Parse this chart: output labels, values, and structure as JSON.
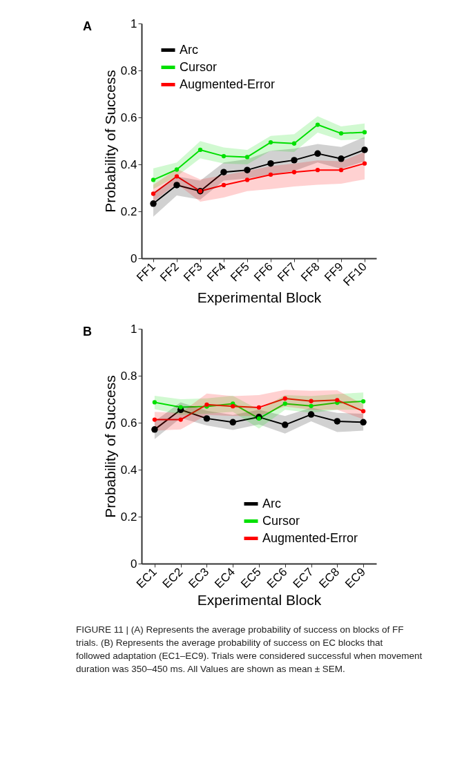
{
  "chart_data": [
    {
      "type": "line",
      "xlabel": "Experimental Block",
      "ylabel": "Probability of Success",
      "annotations": [
        "A"
      ],
      "categories": [
        "FF1",
        "FF2",
        "FF3",
        "FF4",
        "FF5",
        "FF6",
        "FF7",
        "FF8",
        "FF9",
        "FF10"
      ],
      "ylim": [
        0,
        1
      ],
      "yticks": [
        0,
        0.2,
        0.4,
        0.6,
        0.8,
        1
      ],
      "grid": false,
      "legend": "top left",
      "marker": "circle",
      "line_style": "solid",
      "series": [
        {
          "name": "Arc",
          "color": "#000000",
          "values": [
            0.233,
            0.312,
            0.286,
            0.367,
            0.376,
            0.404,
            0.418,
            0.446,
            0.424,
            0.462
          ],
          "lower": [
            0.177,
            0.268,
            0.25,
            0.331,
            0.34,
            0.358,
            0.372,
            0.408,
            0.381,
            0.413
          ],
          "upper": [
            0.281,
            0.349,
            0.331,
            0.408,
            0.422,
            0.458,
            0.467,
            0.487,
            0.474,
            0.517
          ]
        },
        {
          "name": "Cursor",
          "color": "#00e000",
          "values": [
            0.334,
            0.378,
            0.462,
            0.435,
            0.431,
            0.494,
            0.489,
            0.569,
            0.532,
            0.537
          ],
          "lower": [
            0.295,
            0.349,
            0.426,
            0.404,
            0.4,
            0.458,
            0.453,
            0.535,
            0.503,
            0.508
          ],
          "upper": [
            0.383,
            0.408,
            0.499,
            0.472,
            0.462,
            0.521,
            0.529,
            0.605,
            0.562,
            0.574
          ]
        },
        {
          "name": "Augmented-Error",
          "color": "#ff0000",
          "values": [
            0.275,
            0.349,
            0.286,
            0.312,
            0.334,
            0.356,
            0.367,
            0.376,
            0.376,
            0.404
          ],
          "lower": [
            0.241,
            0.318,
            0.241,
            0.259,
            0.286,
            0.295,
            0.306,
            0.313,
            0.318,
            0.336
          ],
          "upper": [
            0.313,
            0.381,
            0.336,
            0.354,
            0.372,
            0.393,
            0.404,
            0.417,
            0.413,
            0.453
          ]
        }
      ]
    },
    {
      "type": "line",
      "xlabel": "Experimental Block",
      "ylabel": "Probability of Success",
      "annotations": [
        "B",
        "FIGURE 11 | (A) Represents the average probability of success on blocks of FF trials. (B) Represents the average probability of success on EC blocks that followed adaptation (EC1–EC9). Trials were considered successful when movement duration was 350–450 ms. All Values are shown as mean ± SEM."
      ],
      "categories": [
        "EC1",
        "EC2",
        "EC3",
        "EC4",
        "EC5",
        "EC6",
        "EC7",
        "EC8",
        "EC9"
      ],
      "ylim": [
        0,
        1
      ],
      "yticks": [
        0,
        0.2,
        0.4,
        0.6,
        0.8,
        1
      ],
      "grid": false,
      "legend": "bottom right",
      "marker": "circle",
      "line_style": "solid",
      "series": [
        {
          "name": "Arc",
          "color": "#000000",
          "values": [
            0.571,
            0.655,
            0.618,
            0.602,
            0.624,
            0.591,
            0.635,
            0.606,
            0.602
          ],
          "lower": [
            0.53,
            0.62,
            0.588,
            0.569,
            0.593,
            0.554,
            0.606,
            0.56,
            0.566
          ],
          "upper": [
            0.606,
            0.687,
            0.651,
            0.633,
            0.655,
            0.629,
            0.664,
            0.642,
            0.638
          ]
        },
        {
          "name": "Cursor",
          "color": "#00e000",
          "values": [
            0.687,
            0.666,
            0.669,
            0.681,
            0.618,
            0.681,
            0.671,
            0.685,
            0.691
          ],
          "lower": [
            0.658,
            0.633,
            0.638,
            0.646,
            0.575,
            0.655,
            0.642,
            0.655,
            0.655
          ],
          "upper": [
            0.715,
            0.7,
            0.704,
            0.715,
            0.655,
            0.718,
            0.713,
            0.722,
            0.729
          ]
        },
        {
          "name": "Augmented-Error",
          "color": "#ff0000",
          "values": [
            0.613,
            0.613,
            0.677,
            0.67,
            0.665,
            0.703,
            0.692,
            0.696,
            0.649
          ],
          "lower": [
            0.566,
            0.571,
            0.633,
            0.629,
            0.629,
            0.669,
            0.655,
            0.655,
            0.615
          ],
          "upper": [
            0.646,
            0.642,
            0.724,
            0.713,
            0.718,
            0.74,
            0.736,
            0.738,
            0.678
          ]
        }
      ]
    }
  ]
}
